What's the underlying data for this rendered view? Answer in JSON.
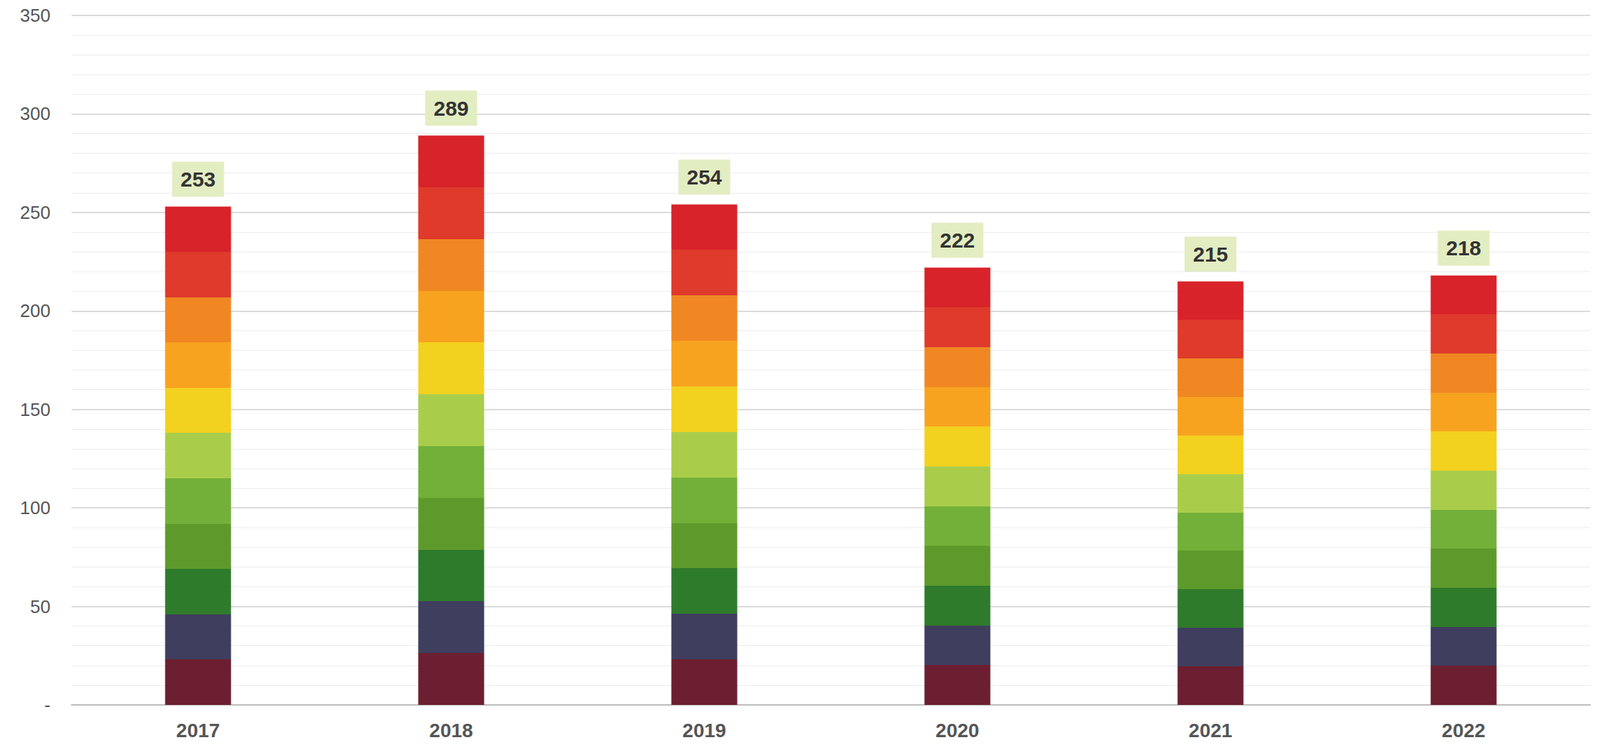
{
  "chart_data": {
    "type": "bar",
    "categories": [
      "2017",
      "2018",
      "2019",
      "2020",
      "2021",
      "2022"
    ],
    "values": [
      253,
      289,
      254,
      222,
      215,
      218
    ],
    "ylim": [
      0,
      350
    ],
    "yticks": [
      {
        "value": 0,
        "label": "-"
      },
      50,
      100,
      150,
      200,
      250,
      300,
      350
    ],
    "grid": true,
    "data_labels": true
  }
}
